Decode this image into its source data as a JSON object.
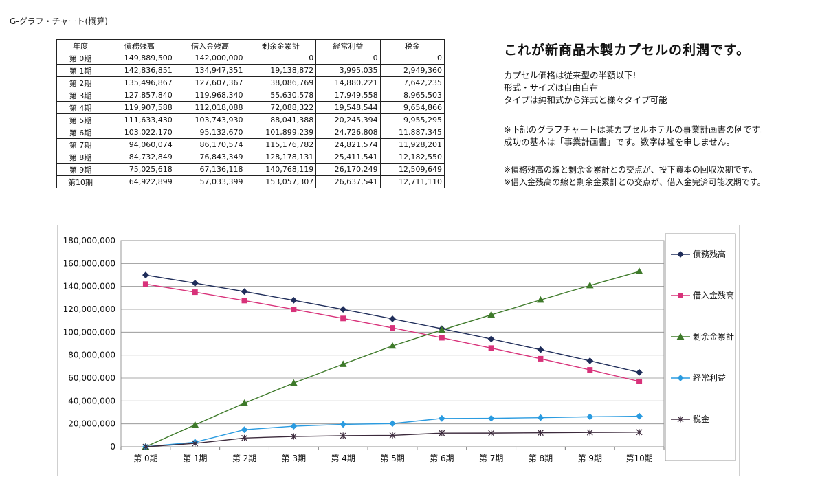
{
  "page_title": "G-グラフ・チャート(概算)",
  "headline": "これが新商品木製カプセルの利潤です。",
  "paragraphs": [
    [
      "カプセル価格は従来型の半額以下!",
      "形式・サイズは自由自在",
      "タイプは純和式から洋式と様々タイプ可能"
    ],
    [
      "※下記のグラフチャートは某カプセルホテルの事業計画書の例です。",
      "成功の基本は「事業計画書」です。数字は嘘を申しません。"
    ],
    [
      "※債務残高の線と剰余金累計との交点が、投下資本の回収次期です。",
      "※借入金残高の線と剰余金累計との交点が、借入金完済可能次期です。"
    ]
  ],
  "table": {
    "headers": [
      "年度",
      "債務残高",
      "借入金残高",
      "剰余金累計",
      "経常利益",
      "税金"
    ],
    "rows": [
      [
        "第 0期",
        "149,889,500",
        "142,000,000",
        "0",
        "0",
        "0"
      ],
      [
        "第 1期",
        "142,836,851",
        "134,947,351",
        "19,138,872",
        "3,995,035",
        "2,949,360"
      ],
      [
        "第 2期",
        "135,496,867",
        "127,607,367",
        "38,086,769",
        "14,880,221",
        "7,642,235"
      ],
      [
        "第 3期",
        "127,857,840",
        "119,968,340",
        "55,630,578",
        "17,949,558",
        "8,965,503"
      ],
      [
        "第 4期",
        "119,907,588",
        "112,018,088",
        "72,088,322",
        "19,548,544",
        "9,654,866"
      ],
      [
        "第 5期",
        "111,633,430",
        "103,743,930",
        "88,041,388",
        "20,245,394",
        "9,955,295"
      ],
      [
        "第 6期",
        "103,022,170",
        "95,132,670",
        "101,899,239",
        "24,726,808",
        "11,887,345"
      ],
      [
        "第 7期",
        "94,060,074",
        "86,170,574",
        "115,176,782",
        "24,821,574",
        "11,928,201"
      ],
      [
        "第 8期",
        "84,732,849",
        "76,843,349",
        "128,178,131",
        "25,411,541",
        "12,182,550"
      ],
      [
        "第 9期",
        "75,025,618",
        "67,136,118",
        "140,768,119",
        "26,170,249",
        "12,509,649"
      ],
      [
        "第10期",
        "64,922,899",
        "57,033,399",
        "153,057,307",
        "26,637,541",
        "12,711,110"
      ]
    ]
  },
  "chart_data": {
    "type": "line",
    "categories": [
      "第 0期",
      "第 1期",
      "第 2期",
      "第 3期",
      "第 4期",
      "第 5期",
      "第 6期",
      "第 7期",
      "第 8期",
      "第 9期",
      "第10期"
    ],
    "ylim": [
      0,
      180000000
    ],
    "yticks": [
      0,
      20000000,
      40000000,
      60000000,
      80000000,
      100000000,
      120000000,
      140000000,
      160000000,
      180000000
    ],
    "ytick_labels": [
      "0",
      "20,000,000",
      "40,000,000",
      "60,000,000",
      "80,000,000",
      "100,000,000",
      "120,000,000",
      "140,000,000",
      "160,000,000",
      "180,000,000"
    ],
    "grid": true,
    "legend_position": "right",
    "series": [
      {
        "name": "債務残高",
        "color": "#1f2d5a",
        "marker": "diamond",
        "values": [
          149889500,
          142836851,
          135496867,
          127857840,
          119907588,
          111633430,
          103022170,
          94060074,
          84732849,
          75025618,
          64922899
        ]
      },
      {
        "name": "借入金残高",
        "color": "#d8327a",
        "marker": "square",
        "values": [
          142000000,
          134947351,
          127607367,
          119968340,
          112018088,
          103743930,
          95132670,
          86170574,
          76843349,
          67136118,
          57033399
        ]
      },
      {
        "name": "剰余金累計",
        "color": "#3e7a2a",
        "marker": "triangle",
        "values": [
          0,
          19138872,
          38086769,
          55630578,
          72088322,
          88041388,
          101899239,
          115176782,
          128178131,
          140768119,
          153057307
        ]
      },
      {
        "name": "経常利益",
        "color": "#2a9be0",
        "marker": "diamond",
        "values": [
          0,
          3995035,
          14880221,
          17949558,
          19548544,
          20245394,
          24726808,
          24821574,
          25411541,
          26170249,
          26637541
        ]
      },
      {
        "name": "税金",
        "color": "#3c2a3c",
        "marker": "star",
        "values": [
          0,
          2949360,
          7642235,
          8965503,
          9654866,
          9955295,
          11887345,
          11928201,
          12182550,
          12509649,
          12711110
        ]
      }
    ]
  }
}
